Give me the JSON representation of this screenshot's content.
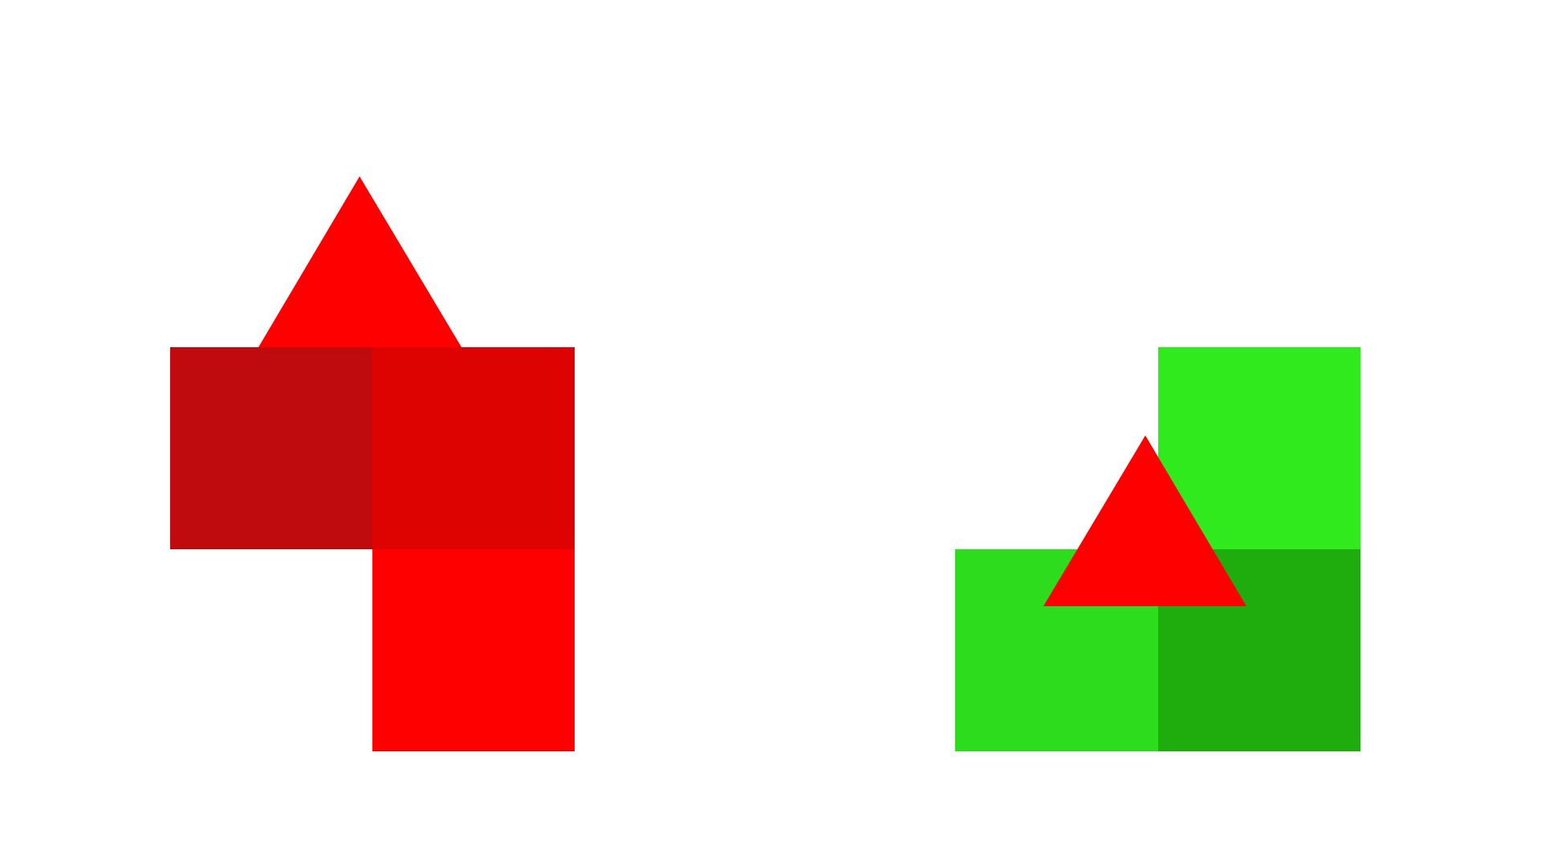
{
  "colors": {
    "background": "#ffffff",
    "left_top_left_square": "#c00b0e",
    "left_top_right_square": "#dc0300",
    "left_bottom_square": "#ff0000",
    "left_triangle": "#ff0000",
    "right_top_square": "#30ea1d",
    "right_bottom_left_square": "#2ddc1c",
    "right_bottom_right_square": "#1fad0e",
    "right_triangle": "#ff0000"
  },
  "shapes": {
    "left_group": [
      "square",
      "square",
      "square",
      "triangle"
    ],
    "right_group": [
      "square",
      "square",
      "square",
      "triangle"
    ]
  }
}
